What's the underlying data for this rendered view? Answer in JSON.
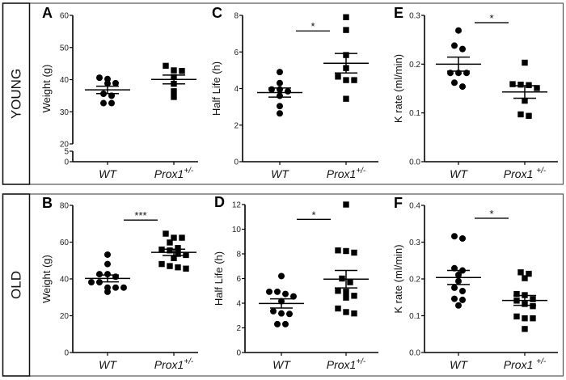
{
  "rows": [
    {
      "label": "YOUNG",
      "panels": [
        "A",
        "C",
        "E"
      ]
    },
    {
      "label": "OLD",
      "panels": [
        "B",
        "D",
        "F"
      ]
    }
  ],
  "chart_data": [
    {
      "type": "scatter",
      "letter": "A",
      "ylabel": "Weight (g)",
      "ylim": [
        0,
        60
      ],
      "yticks": [
        0,
        5,
        20,
        30,
        40,
        50,
        60
      ],
      "axis_break": [
        5,
        20
      ],
      "categories": [
        {
          "name": "WT",
          "sup": ""
        },
        {
          "name": "Prox1",
          "sup": "+/-"
        }
      ],
      "series": [
        {
          "marker": "circle",
          "values": [
            40.2,
            40.6,
            38.8,
            38.9,
            35.0,
            35.6,
            32.7,
            32.7
          ]
        },
        {
          "marker": "square",
          "values": [
            44.3,
            40.8,
            42.7,
            42.9,
            38.7,
            36.4,
            34.6
          ]
        }
      ],
      "significance": null
    },
    {
      "type": "scatter",
      "letter": "C",
      "ylabel": "Half Life (h)",
      "ylim": [
        0,
        8
      ],
      "yticks": [
        0,
        2,
        4,
        6,
        8
      ],
      "categories": [
        {
          "name": "WT",
          "sup": ""
        },
        {
          "name": "Prox1",
          "sup": "+/-"
        }
      ],
      "series": [
        {
          "marker": "circle",
          "values": [
            4.9,
            4.3,
            3.95,
            3.95,
            3.85,
            3.6,
            3.04,
            2.64
          ]
        },
        {
          "marker": "square",
          "values": [
            7.9,
            7.2,
            5.83,
            5.12,
            4.65,
            4.46,
            4.46,
            3.44
          ]
        }
      ],
      "significance": {
        "label": "*",
        "y": 7.15
      }
    },
    {
      "type": "scatter",
      "letter": "E",
      "ylabel": "K rate (ml/min)",
      "ylim": [
        0,
        0.3
      ],
      "yticks": [
        0.0,
        0.1,
        0.2,
        0.3
      ],
      "tick_decimals": 1,
      "categories": [
        {
          "name": "WT",
          "sup": ""
        },
        {
          "name": "Prox1 ",
          "sup": "+/-"
        }
      ],
      "series": [
        {
          "marker": "circle",
          "values": [
            0.269,
            0.238,
            0.231,
            0.182,
            0.182,
            0.182,
            0.154,
            0.162
          ]
        },
        {
          "marker": "square",
          "values": [
            0.203,
            0.158,
            0.151,
            0.157,
            0.159,
            0.125,
            0.094,
            0.097
          ]
        }
      ],
      "significance": {
        "label": "*",
        "y": 0.285
      }
    },
    {
      "type": "scatter",
      "letter": "B",
      "ylabel": "Weight (g)",
      "ylim": [
        0,
        80
      ],
      "yticks": [
        0,
        20,
        40,
        60,
        80
      ],
      "categories": [
        {
          "name": "WT",
          "sup": ""
        },
        {
          "name": "Prox1",
          "sup": "+/-"
        }
      ],
      "series": [
        {
          "marker": "circle",
          "values": [
            53.2,
            48.1,
            42.6,
            42.6,
            41.2,
            38.2,
            38.2,
            35.3,
            35.3,
            35.3,
            33.0
          ]
        },
        {
          "marker": "square",
          "values": [
            64.6,
            62.4,
            62.4,
            59.8,
            56.8,
            56.0,
            55.5,
            53.6,
            53.0,
            51.3,
            48.1,
            47.0,
            46.3,
            45.6
          ]
        }
      ],
      "significance": {
        "label": "***",
        "y": 72
      }
    },
    {
      "type": "scatter",
      "letter": "D",
      "ylabel": "Half Life (h)",
      "ylim": [
        0,
        12
      ],
      "yticks": [
        0,
        2,
        4,
        6,
        8,
        10,
        12
      ],
      "categories": [
        {
          "name": "WT",
          "sup": ""
        },
        {
          "name": "Prox1",
          "sup": "+/-"
        }
      ],
      "series": [
        {
          "marker": "circle",
          "values": [
            6.2,
            4.93,
            4.93,
            4.75,
            4.55,
            4.16,
            3.17,
            3.35,
            3.13,
            2.3,
            2.3
          ]
        },
        {
          "marker": "square",
          "values": [
            12.0,
            8.23,
            8.1,
            8.28,
            6.0,
            5.7,
            5.0,
            4.93,
            4.6,
            4.45,
            3.57,
            3.28,
            3.17
          ]
        }
      ],
      "significance": {
        "label": "*",
        "y": 10.8
      }
    },
    {
      "type": "scatter",
      "letter": "F",
      "ylabel": "K rate (ml/min)",
      "ylim": [
        0,
        0.4
      ],
      "yticks": [
        0.0,
        0.1,
        0.2,
        0.3,
        0.4
      ],
      "tick_decimals": 1,
      "categories": [
        {
          "name": "WT",
          "sup": ""
        },
        {
          "name": "Prox1 ",
          "sup": "+/-"
        }
      ],
      "series": [
        {
          "marker": "circle",
          "values": [
            0.316,
            0.31,
            0.229,
            0.223,
            0.211,
            0.194,
            0.176,
            0.167,
            0.146,
            0.143,
            0.128
          ]
        },
        {
          "marker": "square",
          "values": [
            0.218,
            0.202,
            0.214,
            0.159,
            0.156,
            0.141,
            0.145,
            0.126,
            0.132,
            0.093,
            0.093,
            0.098,
            0.064
          ]
        }
      ],
      "significance": {
        "label": "*",
        "y": 0.365
      }
    }
  ]
}
